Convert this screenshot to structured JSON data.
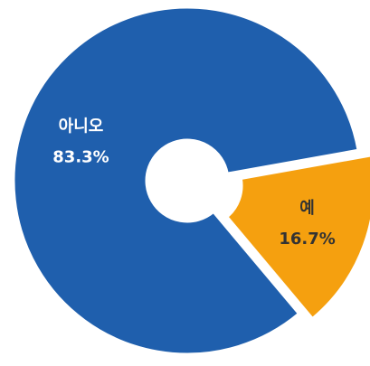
{
  "chart_data": {
    "type": "pie",
    "categories": [
      "아니오",
      "예"
    ],
    "values": [
      83.3,
      16.7
    ],
    "value_labels": [
      "83.3%",
      "16.7%"
    ],
    "colors": [
      "#1f5fad",
      "#f5a00f"
    ],
    "label_colors": [
      "#ffffff",
      "#333333"
    ]
  }
}
